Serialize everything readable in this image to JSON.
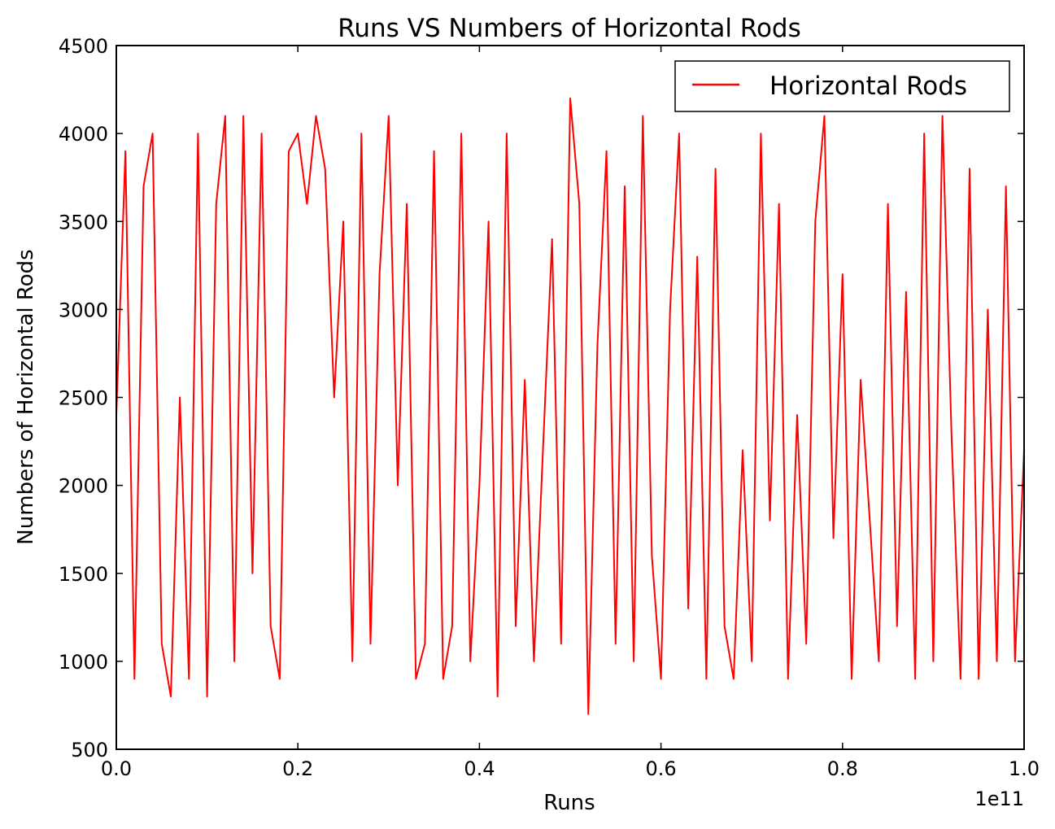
{
  "chart_data": {
    "type": "line",
    "title": "Runs VS Numbers of Horizontal Rods",
    "xlabel": "Runs",
    "ylabel": "Numbers of Horizontal Rods",
    "x_offset_label": "1e11",
    "xlim": [
      0.0,
      1.0
    ],
    "ylim": [
      500,
      4500
    ],
    "x_ticks": [
      0.0,
      0.2,
      0.4,
      0.6,
      0.8,
      1.0
    ],
    "x_tick_labels": [
      "0.0",
      "0.2",
      "0.4",
      "0.6",
      "0.8",
      "1.0"
    ],
    "y_ticks": [
      500,
      1000,
      1500,
      2000,
      2500,
      3000,
      3500,
      4000,
      4500
    ],
    "y_tick_labels": [
      "500",
      "1000",
      "1500",
      "2000",
      "2500",
      "3000",
      "3500",
      "4000",
      "4500"
    ],
    "grid": false,
    "legend_position": "top-right",
    "series": [
      {
        "name": "Horizontal Rods",
        "color": "#ff0000",
        "x": [
          0.0,
          0.01,
          0.02,
          0.03,
          0.04,
          0.05,
          0.06,
          0.07,
          0.08,
          0.09,
          0.1,
          0.11,
          0.12,
          0.13,
          0.14,
          0.15,
          0.16,
          0.17,
          0.18,
          0.19,
          0.2,
          0.21,
          0.22,
          0.23,
          0.24,
          0.25,
          0.26,
          0.27,
          0.28,
          0.29,
          0.3,
          0.31,
          0.32,
          0.33,
          0.34,
          0.35,
          0.36,
          0.37,
          0.38,
          0.39,
          0.4,
          0.41,
          0.42,
          0.43,
          0.44,
          0.45,
          0.46,
          0.47,
          0.48,
          0.49,
          0.5,
          0.51,
          0.52,
          0.53,
          0.54,
          0.55,
          0.56,
          0.57,
          0.58,
          0.59,
          0.6,
          0.61,
          0.62,
          0.63,
          0.64,
          0.65,
          0.66,
          0.67,
          0.68,
          0.69,
          0.7,
          0.71,
          0.72,
          0.73,
          0.74,
          0.75,
          0.76,
          0.77,
          0.78,
          0.79,
          0.8,
          0.81,
          0.82,
          0.83,
          0.84,
          0.85,
          0.86,
          0.87,
          0.88,
          0.89,
          0.9,
          0.91,
          0.92,
          0.93,
          0.94,
          0.95,
          0.96,
          0.97,
          0.98,
          0.99,
          1.0
        ],
        "values": [
          2400,
          3900,
          900,
          3700,
          4000,
          1100,
          800,
          2500,
          900,
          4000,
          800,
          3600,
          4100,
          1000,
          4100,
          1500,
          4000,
          1200,
          900,
          3900,
          4000,
          3600,
          4100,
          3800,
          2500,
          3500,
          1000,
          4000,
          1100,
          3200,
          4100,
          2000,
          3600,
          900,
          1100,
          3900,
          900,
          1200,
          4000,
          1000,
          2000,
          3500,
          800,
          4000,
          1200,
          2600,
          1000,
          2200,
          3400,
          1100,
          4200,
          3600,
          700,
          2800,
          3900,
          1100,
          3700,
          1000,
          4100,
          1600,
          900,
          3000,
          4000,
          1300,
          3300,
          900,
          3800,
          1200,
          900,
          2200,
          1000,
          4000,
          1800,
          3600,
          900,
          2400,
          1100,
          3500,
          4100,
          1700,
          3200,
          900,
          2600,
          1800,
          1000,
          3600,
          1200,
          3100,
          900,
          4000,
          1000,
          4100,
          2300,
          900,
          3800,
          900,
          3000,
          1000,
          3700,
          1000,
          2200
        ]
      }
    ]
  }
}
